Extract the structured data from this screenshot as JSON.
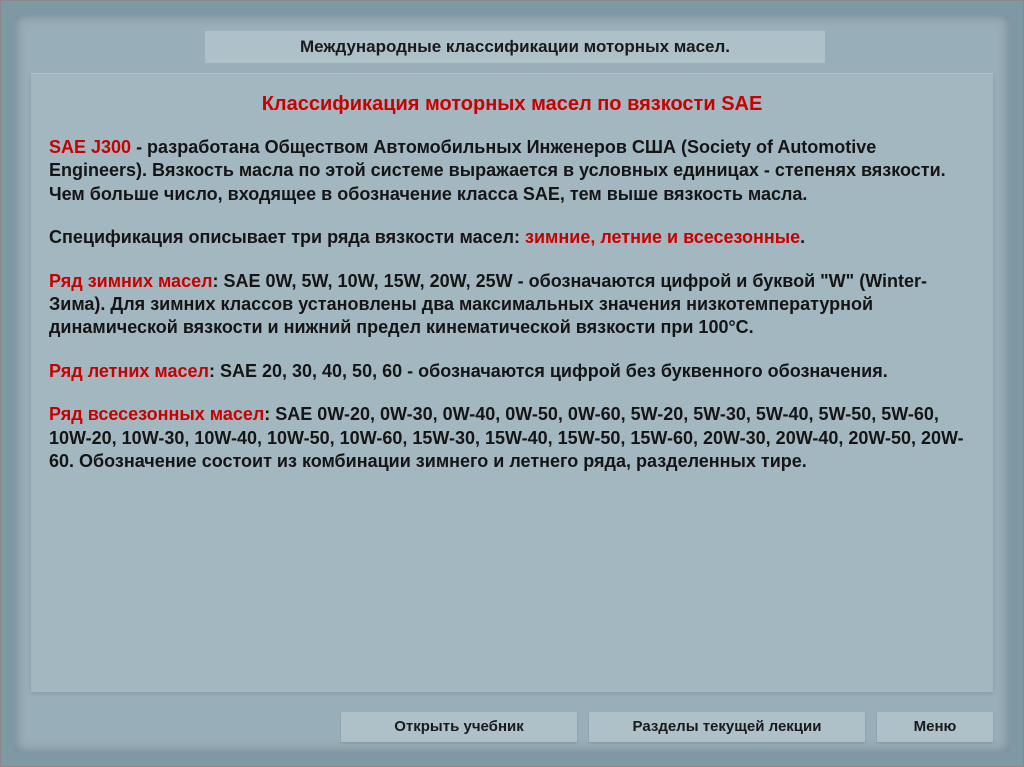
{
  "colors": {
    "slide_bg": "#7e98a4",
    "inner_bg": "#98aeb9",
    "panel_bg": "#a3b7c0",
    "bar_bg": "#aec0c8",
    "text": "#151515",
    "accent_red": "#c90000"
  },
  "title": "Международные классификации моторных масел.",
  "subtitle": "Классификация моторных масел по вязкости SAE",
  "paragraphs": {
    "p1_lead": "SAE J300",
    "p1_rest": " - разработана Обществом Автомобильных Инженеров США (Society of Automotive Engineers). Вязкость масла по этой системе выражается в условных единицах - степенях вязкости. Чем больше число, входящее в обозначение класса SAE, тем выше вязкость масла.",
    "p2_a": "Спецификация описывает три ряда вязкости масел: ",
    "p2_b": "зимние, летние и всесезонные",
    "p2_c": ".",
    "p3_lead": "Ряд зимних масел",
    "p3_rest": ": SAE 0W, 5W, 10W, 15W, 20W, 25W - обозначаются цифрой и буквой \"W\" (Winter-Зима). Для зимних классов установлены два максимальных значения низкотемпературной динамической вязкости и нижний предел кинематической вязкости при 100°С.",
    "p4_lead": "Ряд летних масел",
    "p4_rest": ": SAE 20, 30, 40, 50, 60 - обозначаются цифрой без буквенного обозначения.",
    "p5_lead": "Ряд всесезонных масел",
    "p5_rest": ": SAE 0W-20, 0W-30, 0W-40, 0W-50, 0W-60, 5W-20, 5W-30, 5W-40, 5W-50, 5W-60, 10W-20, 10W-30, 10W-40, 10W-50, 10W-60, 15W-30, 15W-40, 15W-50, 15W-60, 20W-30, 20W-40, 20W-50, 20W-60. Обозначение состоит из комбинации зимнего и летнего ряда, разделенных тире."
  },
  "footer": {
    "textbook": "Открыть учебник",
    "sections": "Разделы текущей лекции",
    "menu": "Меню"
  }
}
